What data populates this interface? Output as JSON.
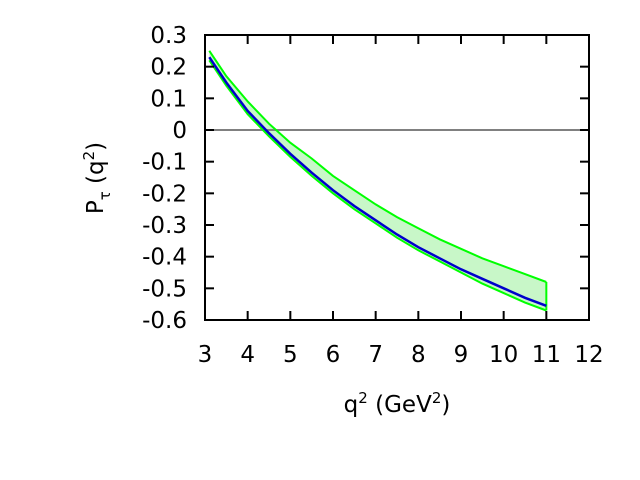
{
  "chart_data": {
    "type": "line",
    "xlabel": {
      "base": "q",
      "sup": "2",
      "rest": " (GeV",
      "sup2": "2",
      "close": ")"
    },
    "ylabel": {
      "base": "P",
      "sub": "τ",
      "rest": " (q",
      "sup": "2",
      "close": ")"
    },
    "xlim": [
      3,
      12
    ],
    "ylim": [
      -0.6,
      0.3
    ],
    "x_ticks": [
      "3",
      "4",
      "5",
      "6",
      "7",
      "8",
      "9",
      "10",
      "11",
      "12"
    ],
    "y_ticks": [
      "0.3",
      "0.2",
      "0.1",
      "0",
      "-0.1",
      "-0.2",
      "-0.3",
      "-0.4",
      "-0.5",
      "-0.6"
    ],
    "grid": false,
    "reference_line": {
      "y": 0,
      "color": "#808080"
    },
    "band": {
      "fill_color": "#c8f7c8",
      "edge_color": "#00ff00",
      "upper": {
        "x": [
          3.1,
          3.5,
          4.0,
          4.5,
          5.0,
          5.5,
          6.0,
          6.5,
          7.0,
          7.5,
          8.0,
          8.5,
          9.0,
          9.5,
          10.0,
          10.5,
          11.0
        ],
        "y": [
          0.25,
          0.17,
          0.09,
          0.02,
          -0.04,
          -0.09,
          -0.145,
          -0.19,
          -0.235,
          -0.275,
          -0.31,
          -0.345,
          -0.375,
          -0.405,
          -0.43,
          -0.455,
          -0.48
        ]
      },
      "lower": {
        "x": [
          3.1,
          3.5,
          4.0,
          4.5,
          5.0,
          5.5,
          6.0,
          6.5,
          7.0,
          7.5,
          8.0,
          8.5,
          9.0,
          9.5,
          10.0,
          10.5,
          11.0
        ],
        "y": [
          0.22,
          0.14,
          0.05,
          -0.02,
          -0.085,
          -0.145,
          -0.2,
          -0.25,
          -0.295,
          -0.34,
          -0.38,
          -0.415,
          -0.45,
          -0.485,
          -0.515,
          -0.545,
          -0.57
        ]
      }
    },
    "series": [
      {
        "color": "#0000cc",
        "x": [
          3.1,
          3.5,
          4.0,
          4.5,
          5.0,
          5.5,
          6.0,
          6.5,
          7.0,
          7.5,
          8.0,
          8.5,
          9.0,
          9.5,
          10.0,
          10.5,
          11.0
        ],
        "y": [
          0.23,
          0.15,
          0.06,
          -0.01,
          -0.075,
          -0.135,
          -0.19,
          -0.24,
          -0.285,
          -0.33,
          -0.37,
          -0.405,
          -0.44,
          -0.47,
          -0.5,
          -0.53,
          -0.555
        ]
      }
    ]
  }
}
